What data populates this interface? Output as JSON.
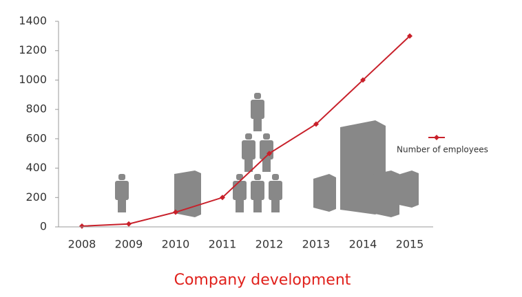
{
  "chart_data": {
    "type": "line",
    "title": "Company development",
    "categories": [
      "2008",
      "2009",
      "2010",
      "2011",
      "2012",
      "2013",
      "2014",
      "2015"
    ],
    "series": [
      {
        "name": "Number of employees",
        "color": "#c8202a",
        "values": [
          5,
          20,
          100,
          200,
          500,
          700,
          1000,
          1300
        ]
      }
    ],
    "ylim": [
      0,
      1400
    ],
    "yticks": [
      0,
      200,
      400,
      600,
      800,
      1000,
      1200,
      1400
    ],
    "grid": false
  }
}
